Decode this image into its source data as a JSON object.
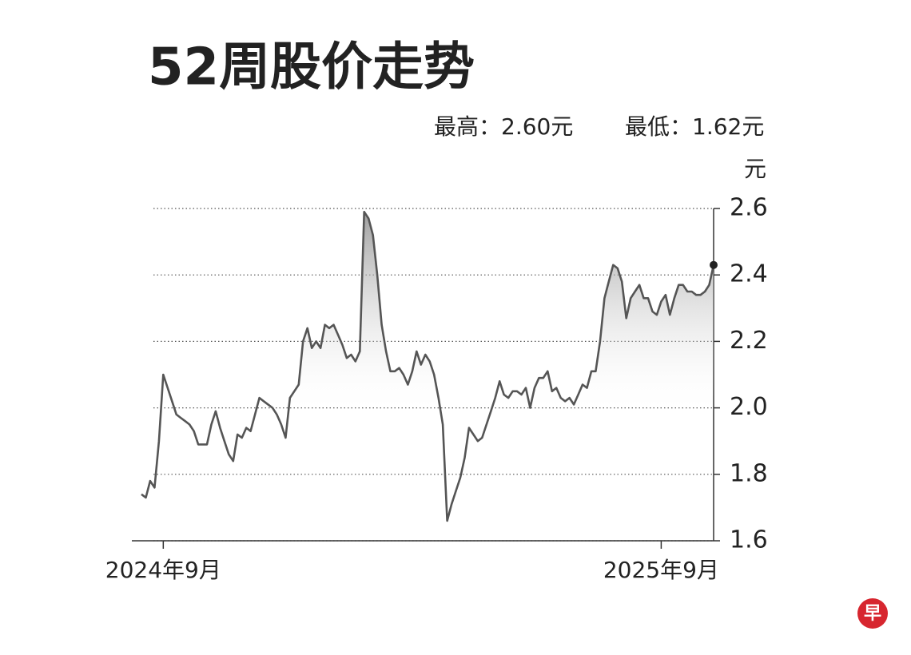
{
  "chart_data": {
    "type": "line",
    "title": "52周股价走势",
    "subtitle": [
      "最高：2.60元",
      "最低：1.62元"
    ],
    "y_label": "元",
    "logo": "早",
    "categories": [
      null,
      null,
      null,
      null,
      null,
      "2024年9月",
      null,
      null,
      null,
      null,
      null,
      null,
      null,
      null,
      null,
      null,
      null,
      null,
      null,
      null,
      null,
      null,
      null,
      null,
      null,
      null,
      null,
      null,
      null,
      null,
      null,
      null,
      null,
      null,
      null,
      null,
      null,
      null,
      null,
      null,
      null,
      null,
      null,
      null,
      null,
      null,
      null,
      null,
      null,
      null,
      null,
      null,
      null,
      null,
      null,
      null,
      null,
      null,
      null,
      null,
      null,
      null,
      null,
      null,
      null,
      null,
      null,
      null,
      null,
      null,
      null,
      null,
      null,
      null,
      null,
      null,
      null,
      null,
      null,
      null,
      null,
      null,
      null,
      null,
      null,
      null,
      null,
      null,
      null,
      null,
      null,
      null,
      null,
      null,
      null,
      null,
      null,
      null,
      null,
      null,
      null,
      null,
      null,
      null,
      null,
      null,
      null,
      null,
      null,
      null,
      null,
      null,
      null,
      null,
      null,
      null,
      null,
      null,
      null,
      "2025年9月",
      null,
      null,
      null,
      null,
      null,
      null,
      null,
      null,
      null,
      null,
      null,
      null
    ],
    "values": [
      1.74,
      1.73,
      1.78,
      1.76,
      1.9,
      2.1,
      2.06,
      2.02,
      1.98,
      1.97,
      1.96,
      1.95,
      1.93,
      1.89,
      1.89,
      1.89,
      1.95,
      1.99,
      1.94,
      1.9,
      1.86,
      1.84,
      1.92,
      1.91,
      1.94,
      1.93,
      1.98,
      2.03,
      2.02,
      2.01,
      2.0,
      1.98,
      1.95,
      1.91,
      2.03,
      2.05,
      2.07,
      2.2,
      2.24,
      2.18,
      2.2,
      2.18,
      2.25,
      2.24,
      2.25,
      2.22,
      2.19,
      2.15,
      2.16,
      2.14,
      2.17,
      2.59,
      2.57,
      2.52,
      2.4,
      2.25,
      2.17,
      2.11,
      2.11,
      2.12,
      2.1,
      2.07,
      2.11,
      2.17,
      2.13,
      2.16,
      2.14,
      2.1,
      2.03,
      1.95,
      1.66,
      1.71,
      1.75,
      1.79,
      1.85,
      1.94,
      1.92,
      1.9,
      1.91,
      1.95,
      1.99,
      2.03,
      2.08,
      2.04,
      2.03,
      2.05,
      2.05,
      2.04,
      2.06,
      2.0,
      2.06,
      2.09,
      2.09,
      2.11,
      2.05,
      2.06,
      2.03,
      2.02,
      2.03,
      2.01,
      2.04,
      2.07,
      2.06,
      2.11,
      2.11,
      2.2,
      2.33,
      2.38,
      2.43,
      2.42,
      2.38,
      2.27,
      2.33,
      2.35,
      2.37,
      2.33,
      2.33,
      2.29,
      2.28,
      2.32,
      2.34,
      2.28,
      2.33,
      2.37,
      2.37,
      2.35,
      2.35,
      2.34,
      2.34,
      2.35,
      2.37,
      2.43
    ],
    "color": "#555555",
    "ylim": [
      1.6,
      2.6
    ],
    "yticks": [
      1.6,
      1.8,
      {
        "value": 2,
        "label": "2.0"
      },
      2.2,
      2.4,
      2.6
    ],
    "grid": true
  }
}
